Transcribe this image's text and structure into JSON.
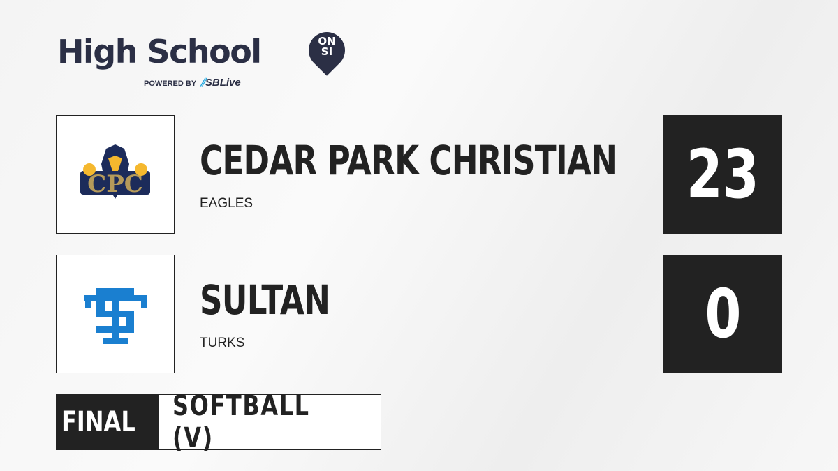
{
  "brand": {
    "title": "High School",
    "badge_top": "ON",
    "badge_bottom": "SI",
    "powered_by": "POWERED BY",
    "partner": "SBLive"
  },
  "teams": [
    {
      "name": "CEDAR PARK CHRISTIAN",
      "mascot": "EAGLES",
      "score": "23",
      "logo_text": "CPC",
      "colors": {
        "primary": "#1c2b5a",
        "secondary": "#b59a5a",
        "accent": "#f5b82e"
      }
    },
    {
      "name": "SULTAN",
      "mascot": "TURKS",
      "score": "0",
      "logo_text": "ST",
      "colors": {
        "primary": "#1a7fd0"
      }
    }
  ],
  "game": {
    "status": "FINAL",
    "sport": "SOFTBALL (V)"
  }
}
